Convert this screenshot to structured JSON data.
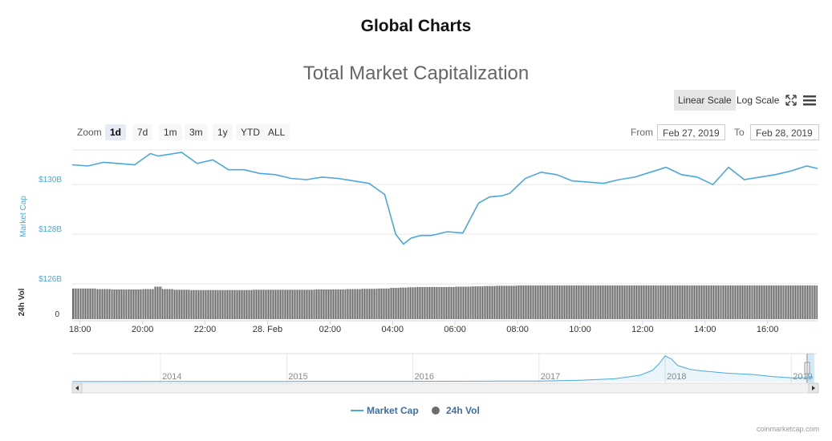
{
  "page": {
    "title": "Global Charts",
    "credits": "coinmarketcap.com"
  },
  "toolbar": {
    "linear_label": "Linear Scale",
    "log_label": "Log Scale",
    "zoom_label": "Zoom",
    "zoom_buttons": [
      "1d",
      "7d",
      "1m",
      "3m",
      "1y",
      "YTD",
      "ALL"
    ],
    "zoom_selected": "1d",
    "from_label": "From",
    "to_label": "To",
    "from_value": "Feb 27, 2019",
    "to_value": "Feb 28, 2019"
  },
  "icons": {
    "fullscreen": "fullscreen-icon",
    "menu": "hamburger-menu-icon"
  },
  "colors": {
    "market_cap": "#4aa8df",
    "volume": "#6d6d6d",
    "legend_text": "#3f6fa6"
  },
  "chart_data": {
    "type": "line",
    "title": "Total Market Capitalization",
    "ylabel": "Market Cap",
    "volume_label": "24h Vol",
    "ylim": [
      126,
      131.3
    ],
    "y_ticks": [
      "$126B",
      "$128B",
      "$130B"
    ],
    "y_tick_values": [
      126,
      128,
      130
    ],
    "volume_ticks": [
      "0"
    ],
    "volume_ylim": [
      0,
      1.1
    ],
    "x_ticks": [
      "18:00",
      "20:00",
      "22:00",
      "28. Feb",
      "02:00",
      "04:00",
      "06:00",
      "08:00",
      "10:00",
      "12:00",
      "14:00",
      "16:00"
    ],
    "x_tick_hours": [
      0,
      2,
      4,
      6,
      8,
      10,
      12,
      14,
      16,
      18,
      20,
      22
    ],
    "x_range_hours": [
      -0.25,
      23.6
    ],
    "x": [
      -0.25,
      0.25,
      0.75,
      1.25,
      1.75,
      2.25,
      2.5,
      2.75,
      3.25,
      3.75,
      4.25,
      4.75,
      5.25,
      5.75,
      6.25,
      6.75,
      7.25,
      7.75,
      8.25,
      8.75,
      9.25,
      9.75,
      10.1,
      10.35,
      10.6,
      10.9,
      11.25,
      11.75,
      12.25,
      12.75,
      13.1,
      13.5,
      13.75,
      14.25,
      14.75,
      15.25,
      15.75,
      16.25,
      16.75,
      17.25,
      17.75,
      18.25,
      18.75,
      19.25,
      19.75,
      20.25,
      20.75,
      21.25,
      21.75,
      22.25,
      22.75,
      23.25,
      23.6
    ],
    "series": [
      {
        "name": "Market Cap",
        "values": [
          130.8,
          130.75,
          130.9,
          130.85,
          130.8,
          131.25,
          131.15,
          131.2,
          131.3,
          130.85,
          131.0,
          130.6,
          130.6,
          130.45,
          130.4,
          130.25,
          130.2,
          130.3,
          130.25,
          130.15,
          130.05,
          129.6,
          128.0,
          127.6,
          127.85,
          127.95,
          127.95,
          128.1,
          128.05,
          129.25,
          129.5,
          129.55,
          129.65,
          130.25,
          130.5,
          130.4,
          130.15,
          130.1,
          130.05,
          130.2,
          130.3,
          130.5,
          130.7,
          130.4,
          130.3,
          130.0,
          130.7,
          130.2,
          130.3,
          130.4,
          130.55,
          130.75,
          130.65
        ]
      },
      {
        "name": "24h Vol",
        "values": [
          1.0,
          1.0,
          0.98,
          0.97,
          0.97,
          0.98,
          1.06,
          0.98,
          0.96,
          0.95,
          0.95,
          0.95,
          0.95,
          0.96,
          0.96,
          0.96,
          0.96,
          0.97,
          0.97,
          0.98,
          0.99,
          1.0,
          1.02,
          1.03,
          1.04,
          1.05,
          1.05,
          1.05,
          1.06,
          1.07,
          1.08,
          1.09,
          1.09,
          1.1,
          1.1,
          1.1,
          1.1,
          1.1,
          1.1,
          1.1,
          1.1,
          1.1,
          1.1,
          1.1,
          1.1,
          1.1,
          1.1,
          1.1,
          1.1,
          1.1,
          1.1,
          1.1,
          1.1
        ]
      }
    ],
    "navigator": {
      "labels": [
        "2014",
        "2015",
        "2016",
        "2017",
        "2018",
        "2019"
      ],
      "label_years": [
        2014,
        2015,
        2016,
        2017,
        2018,
        2019
      ],
      "x_range_years": [
        2013.3,
        2019.17
      ],
      "x": [
        2013.3,
        2014,
        2015,
        2016,
        2017,
        2017.3,
        2017.6,
        2017.8,
        2017.9,
        2017.95,
        2018.0,
        2018.05,
        2018.1,
        2018.2,
        2018.3,
        2018.5,
        2018.7,
        2018.85,
        2019.0,
        2019.17
      ],
      "values": [
        0.002,
        0.005,
        0.007,
        0.01,
        0.02,
        0.04,
        0.09,
        0.2,
        0.35,
        0.55,
        0.8,
        0.7,
        0.5,
        0.38,
        0.33,
        0.26,
        0.22,
        0.16,
        0.12,
        0.13
      ],
      "ylim": [
        0,
        0.82
      ]
    },
    "legend": [
      "Market Cap",
      "24h Vol"
    ],
    "legend_position": "bottom-center"
  }
}
